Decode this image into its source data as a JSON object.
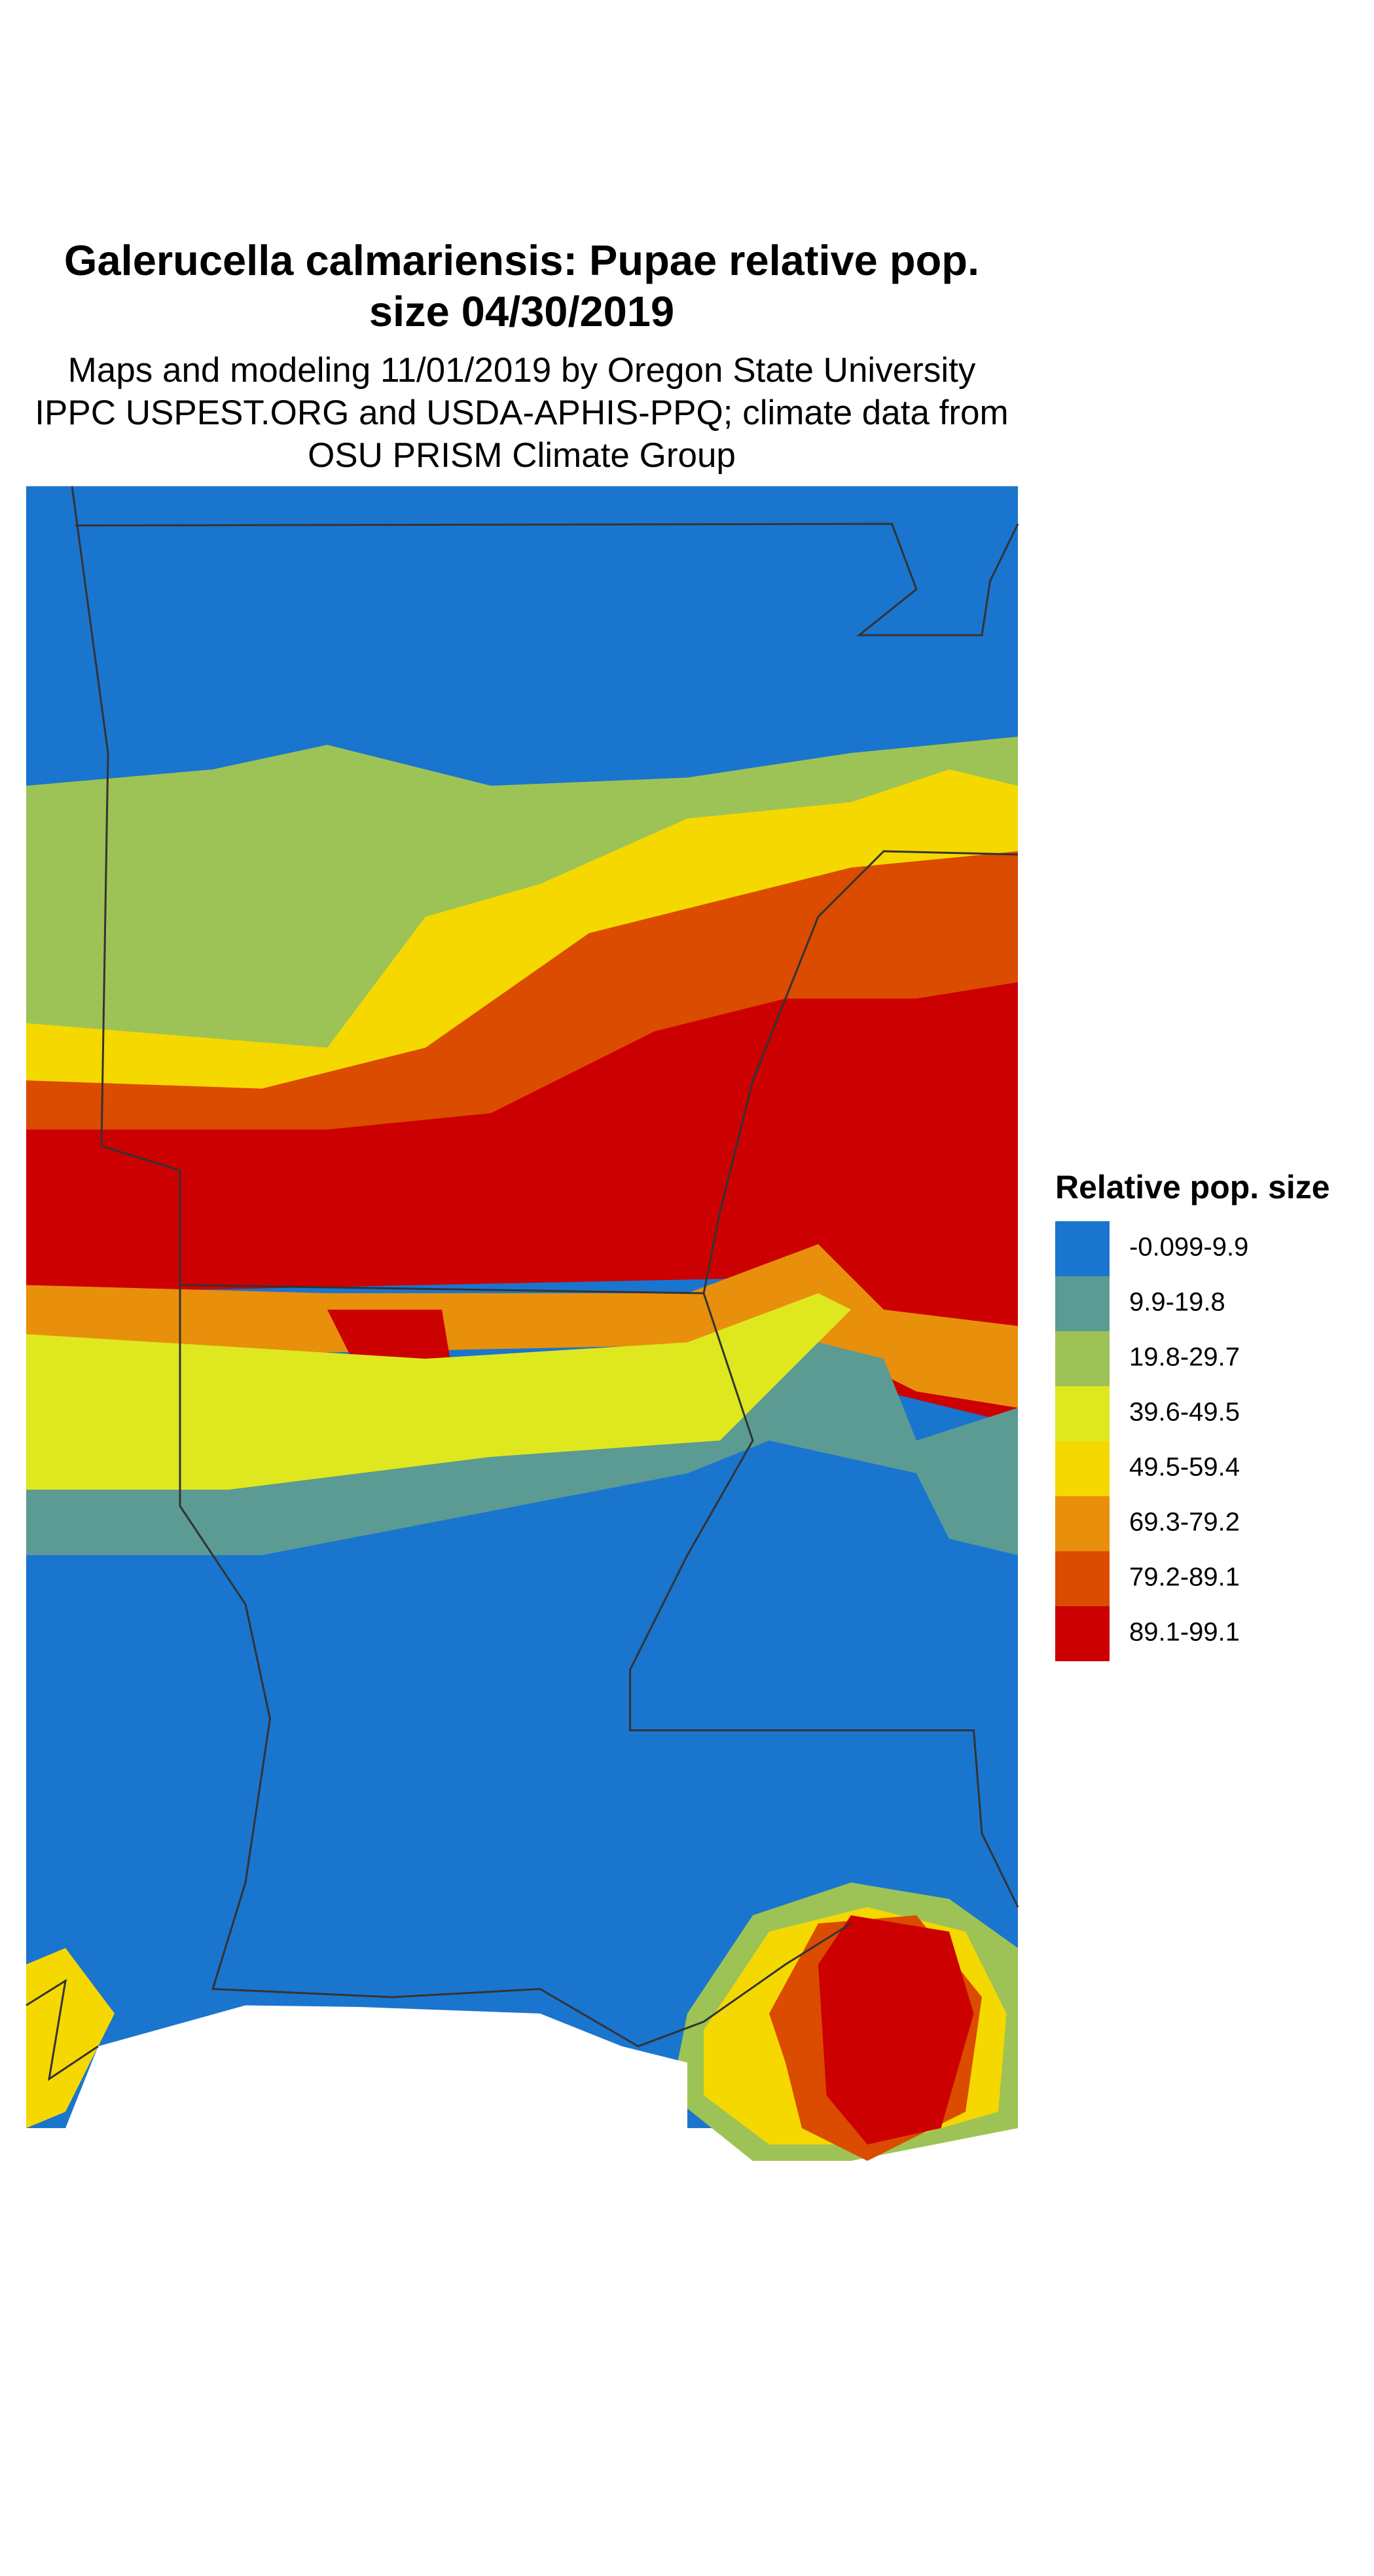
{
  "title_lines": [
    "Galerucella calmariensis: Pupae relative pop.",
    "size 04/30/2019"
  ],
  "subtitle_lines": [
    "Maps and modeling 11/01/2019 by Oregon State University",
    "IPPC USPEST.ORG and USDA-APHIS-PPQ; climate data from",
    "OSU PRISM Climate Group"
  ],
  "legend": {
    "title": "Relative pop. size",
    "items": [
      {
        "label": "-0.099-9.9",
        "color": "#1a75cf"
      },
      {
        "label": "9.9-19.8",
        "color": "#5b9b93"
      },
      {
        "label": "19.8-29.7",
        "color": "#9dc356"
      },
      {
        "label": "39.6-49.5",
        "color": "#dfe81f"
      },
      {
        "label": "49.5-59.4",
        "color": "#f5d800"
      },
      {
        "label": "69.3-79.2",
        "color": "#e88f0c"
      },
      {
        "label": "79.2-89.1",
        "color": "#db4b00"
      },
      {
        "label": "89.1-99.1",
        "color": "#cc0000"
      }
    ]
  }
}
